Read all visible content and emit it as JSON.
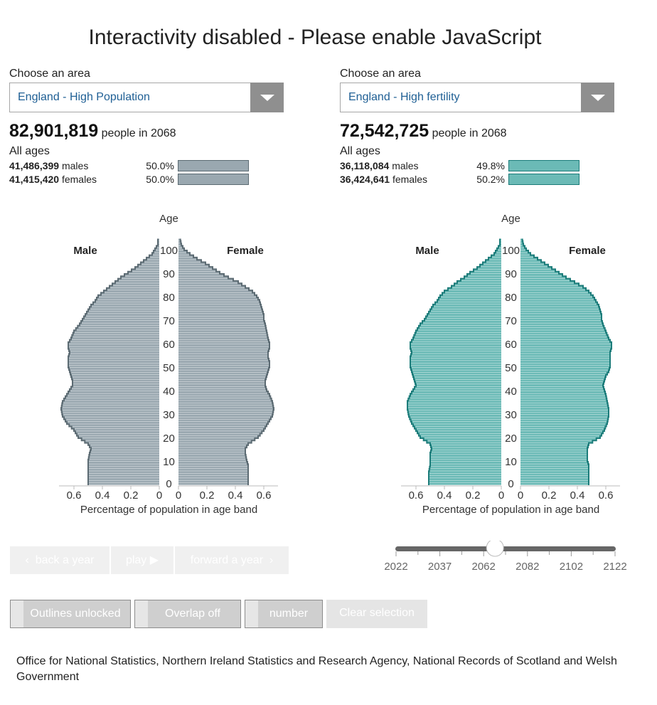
{
  "page": {
    "title": "Interactivity disabled - Please enable JavaScript",
    "source": "Office for National Statistics, Northern Ireland Statistics and Research Agency, National Records of Scotland and Welsh Government"
  },
  "panels": [
    {
      "choose_label": "Choose an area",
      "area": "England - High Population",
      "total": "82,901,819",
      "total_suffix": "people in 2068",
      "all_ages": "All ages",
      "males_count": "41,486,399",
      "males_label": "males",
      "males_pct": "50.0%",
      "males_share": 50.0,
      "females_count": "41,415,420",
      "females_label": "females",
      "females_pct": "50.0%",
      "females_share": 50.0,
      "color": "#9aa8b0",
      "stroke": "#5c6b73"
    },
    {
      "choose_label": "Choose an area",
      "area": "England - High fertility",
      "total": "72,542,725",
      "total_suffix": "people in 2068",
      "all_ages": "All ages",
      "males_count": "36,118,084",
      "males_label": "males",
      "males_pct": "49.8%",
      "males_share": 49.8,
      "females_count": "36,424,641",
      "females_label": "females",
      "females_pct": "50.2%",
      "females_share": 50.2,
      "color": "#6bbab6",
      "stroke": "#1c7c7a"
    }
  ],
  "controls": {
    "back": "back a year",
    "play": "play",
    "forward": "forward a year",
    "outlines": "Outlines unlocked",
    "overlap": "Overlap off",
    "number": "number",
    "clear": "Clear selection"
  },
  "slider": {
    "ticks": [
      "2022",
      "2037",
      "2062",
      "2082",
      "2102",
      "2122"
    ],
    "value": 2068,
    "min": 2022,
    "max": 2122
  },
  "chart_data": [
    {
      "type": "bar",
      "orientation": "horizontal-pyramid",
      "ylabel": "Age",
      "xlabel": "Percentage of population in age band",
      "left_label": "Male",
      "right_label": "Female",
      "x_ticks": [
        "0.6",
        "0.4",
        "0.2",
        "0"
      ],
      "x_ticks_right": [
        "0",
        "0.2",
        "0.4",
        "0.6"
      ],
      "xlim": [
        0,
        0.7
      ],
      "y_ticks": [
        "0",
        "10",
        "20",
        "30",
        "40",
        "50",
        "60",
        "70",
        "80",
        "90",
        "100"
      ],
      "male_profile": [
        [
          0,
          0.5
        ],
        [
          5,
          0.5
        ],
        [
          8,
          0.5
        ],
        [
          10,
          0.5
        ],
        [
          13,
          0.49
        ],
        [
          15,
          0.48
        ],
        [
          17,
          0.5
        ],
        [
          20,
          0.57
        ],
        [
          23,
          0.6
        ],
        [
          26,
          0.65
        ],
        [
          29,
          0.68
        ],
        [
          32,
          0.69
        ],
        [
          35,
          0.68
        ],
        [
          38,
          0.65
        ],
        [
          40,
          0.63
        ],
        [
          42,
          0.61
        ],
        [
          44,
          0.61
        ],
        [
          46,
          0.62
        ],
        [
          48,
          0.63
        ],
        [
          50,
          0.64
        ],
        [
          52,
          0.64
        ],
        [
          54,
          0.64
        ],
        [
          56,
          0.63
        ],
        [
          58,
          0.64
        ],
        [
          60,
          0.64
        ],
        [
          62,
          0.62
        ],
        [
          65,
          0.6
        ],
        [
          68,
          0.56
        ],
        [
          70,
          0.54
        ],
        [
          72,
          0.52
        ],
        [
          74,
          0.5
        ],
        [
          76,
          0.48
        ],
        [
          78,
          0.45
        ],
        [
          80,
          0.43
        ],
        [
          82,
          0.39
        ],
        [
          84,
          0.35
        ],
        [
          86,
          0.31
        ],
        [
          88,
          0.27
        ],
        [
          90,
          0.22
        ],
        [
          92,
          0.17
        ],
        [
          94,
          0.13
        ],
        [
          96,
          0.09
        ],
        [
          98,
          0.05
        ],
        [
          100,
          0.03
        ],
        [
          102,
          0.01
        ],
        [
          105,
          0.01
        ]
      ],
      "female_profile": [
        [
          0,
          0.49
        ],
        [
          5,
          0.49
        ],
        [
          8,
          0.49
        ],
        [
          10,
          0.48
        ],
        [
          13,
          0.47
        ],
        [
          15,
          0.47
        ],
        [
          17,
          0.49
        ],
        [
          20,
          0.56
        ],
        [
          23,
          0.6
        ],
        [
          26,
          0.63
        ],
        [
          29,
          0.66
        ],
        [
          32,
          0.67
        ],
        [
          35,
          0.66
        ],
        [
          38,
          0.64
        ],
        [
          40,
          0.62
        ],
        [
          42,
          0.61
        ],
        [
          44,
          0.61
        ],
        [
          46,
          0.62
        ],
        [
          48,
          0.63
        ],
        [
          50,
          0.64
        ],
        [
          52,
          0.64
        ],
        [
          54,
          0.63
        ],
        [
          56,
          0.63
        ],
        [
          58,
          0.64
        ],
        [
          60,
          0.64
        ],
        [
          62,
          0.63
        ],
        [
          65,
          0.62
        ],
        [
          68,
          0.61
        ],
        [
          70,
          0.6
        ],
        [
          72,
          0.6
        ],
        [
          74,
          0.59
        ],
        [
          76,
          0.58
        ],
        [
          78,
          0.57
        ],
        [
          80,
          0.55
        ],
        [
          82,
          0.52
        ],
        [
          84,
          0.47
        ],
        [
          86,
          0.42
        ],
        [
          88,
          0.35
        ],
        [
          90,
          0.29
        ],
        [
          92,
          0.24
        ],
        [
          94,
          0.19
        ],
        [
          96,
          0.13
        ],
        [
          98,
          0.08
        ],
        [
          100,
          0.04
        ],
        [
          102,
          0.02
        ],
        [
          105,
          0.01
        ]
      ]
    },
    {
      "type": "bar",
      "orientation": "horizontal-pyramid",
      "ylabel": "Age",
      "xlabel": "Percentage of population in age band",
      "left_label": "Male",
      "right_label": "Female",
      "x_ticks": [
        "0.6",
        "0.4",
        "0.2",
        "0"
      ],
      "x_ticks_right": [
        "0",
        "0.2",
        "0.4",
        "0.6"
      ],
      "xlim": [
        0,
        0.7
      ],
      "y_ticks": [
        "0",
        "10",
        "20",
        "30",
        "40",
        "50",
        "60",
        "70",
        "80",
        "90",
        "100"
      ],
      "male_profile": [
        [
          0,
          0.51
        ],
        [
          5,
          0.51
        ],
        [
          8,
          0.5
        ],
        [
          10,
          0.5
        ],
        [
          13,
          0.5
        ],
        [
          15,
          0.49
        ],
        [
          17,
          0.5
        ],
        [
          20,
          0.57
        ],
        [
          23,
          0.6
        ],
        [
          26,
          0.63
        ],
        [
          29,
          0.65
        ],
        [
          32,
          0.66
        ],
        [
          35,
          0.66
        ],
        [
          38,
          0.64
        ],
        [
          40,
          0.62
        ],
        [
          42,
          0.6
        ],
        [
          44,
          0.61
        ],
        [
          46,
          0.62
        ],
        [
          48,
          0.63
        ],
        [
          50,
          0.64
        ],
        [
          52,
          0.64
        ],
        [
          54,
          0.64
        ],
        [
          56,
          0.63
        ],
        [
          58,
          0.64
        ],
        [
          60,
          0.64
        ],
        [
          62,
          0.62
        ],
        [
          65,
          0.6
        ],
        [
          68,
          0.57
        ],
        [
          70,
          0.54
        ],
        [
          72,
          0.52
        ],
        [
          74,
          0.5
        ],
        [
          76,
          0.48
        ],
        [
          78,
          0.45
        ],
        [
          80,
          0.43
        ],
        [
          82,
          0.4
        ],
        [
          84,
          0.35
        ],
        [
          86,
          0.31
        ],
        [
          88,
          0.26
        ],
        [
          90,
          0.22
        ],
        [
          92,
          0.17
        ],
        [
          94,
          0.13
        ],
        [
          96,
          0.09
        ],
        [
          98,
          0.05
        ],
        [
          100,
          0.03
        ],
        [
          102,
          0.01
        ],
        [
          105,
          0.01
        ]
      ],
      "female_profile": [
        [
          0,
          0.48
        ],
        [
          5,
          0.48
        ],
        [
          8,
          0.48
        ],
        [
          10,
          0.47
        ],
        [
          13,
          0.47
        ],
        [
          15,
          0.47
        ],
        [
          17,
          0.48
        ],
        [
          20,
          0.56
        ],
        [
          23,
          0.59
        ],
        [
          26,
          0.61
        ],
        [
          29,
          0.62
        ],
        [
          32,
          0.62
        ],
        [
          35,
          0.61
        ],
        [
          38,
          0.6
        ],
        [
          40,
          0.59
        ],
        [
          42,
          0.58
        ],
        [
          44,
          0.59
        ],
        [
          46,
          0.6
        ],
        [
          48,
          0.62
        ],
        [
          50,
          0.63
        ],
        [
          52,
          0.63
        ],
        [
          54,
          0.63
        ],
        [
          56,
          0.63
        ],
        [
          58,
          0.64
        ],
        [
          60,
          0.64
        ],
        [
          62,
          0.62
        ],
        [
          65,
          0.6
        ],
        [
          68,
          0.58
        ],
        [
          70,
          0.57
        ],
        [
          72,
          0.57
        ],
        [
          74,
          0.56
        ],
        [
          76,
          0.55
        ],
        [
          78,
          0.53
        ],
        [
          80,
          0.51
        ],
        [
          82,
          0.48
        ],
        [
          84,
          0.44
        ],
        [
          86,
          0.38
        ],
        [
          88,
          0.32
        ],
        [
          90,
          0.27
        ],
        [
          92,
          0.22
        ],
        [
          94,
          0.17
        ],
        [
          96,
          0.12
        ],
        [
          98,
          0.07
        ],
        [
          100,
          0.04
        ],
        [
          102,
          0.02
        ],
        [
          105,
          0.01
        ]
      ]
    }
  ]
}
